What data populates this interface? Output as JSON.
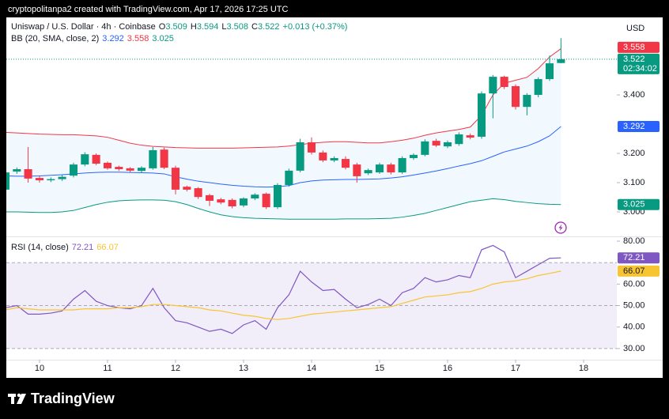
{
  "header": "cryptopolitanpa2 created with TradingView.com, Apr 17, 2026 17:25 UTC",
  "brand": "TradingView",
  "chart_data": [
    {
      "type": "candlestick",
      "title": "Uniswap / U.S. Dollar · 4h · Coinbase",
      "currency": "USD",
      "ohlc_labels": [
        "O",
        "H",
        "L",
        "C"
      ],
      "change": "+0.013 (+0.37%)",
      "countdown": "02:34:02",
      "x": [
        9.5,
        9.667,
        9.833,
        10,
        10.167,
        10.333,
        10.5,
        10.667,
        10.833,
        11,
        11.167,
        11.333,
        11.5,
        11.667,
        11.833,
        12,
        12.167,
        12.333,
        12.5,
        12.667,
        12.833,
        13,
        13.167,
        13.333,
        13.5,
        13.667,
        13.833,
        14,
        14.167,
        14.333,
        14.5,
        14.667,
        14.833,
        15,
        15.167,
        15.333,
        15.5,
        15.667,
        15.833,
        16,
        16.167,
        16.333,
        16.5,
        16.667,
        16.833,
        17,
        17.167,
        17.333,
        17.5,
        17.667
      ],
      "xlim": [
        9.512,
        18.488
      ],
      "open": [
        3.076,
        3.138,
        3.146,
        3.116,
        3.108,
        3.112,
        3.124,
        3.162,
        3.195,
        3.168,
        3.154,
        3.149,
        3.14,
        3.149,
        3.213,
        3.151,
        3.086,
        3.081,
        3.057,
        3.043,
        3.041,
        3.022,
        3.046,
        3.062,
        3.016,
        3.092,
        3.141,
        3.238,
        3.203,
        3.176,
        3.181,
        3.162,
        3.132,
        3.135,
        3.162,
        3.135,
        3.184,
        3.195,
        3.243,
        3.224,
        3.232,
        3.262,
        3.257,
        3.405,
        3.462,
        3.43,
        3.359,
        3.4,
        3.454,
        3.509
      ],
      "high": [
        3.142,
        3.152,
        3.222,
        3.122,
        3.118,
        3.126,
        3.168,
        3.204,
        3.2,
        3.172,
        3.158,
        3.153,
        3.156,
        3.222,
        3.22,
        3.158,
        3.09,
        3.085,
        3.062,
        3.048,
        3.046,
        3.05,
        3.064,
        3.066,
        3.098,
        3.148,
        3.25,
        3.255,
        3.21,
        3.19,
        3.19,
        3.168,
        3.148,
        3.168,
        3.168,
        3.19,
        3.2,
        3.248,
        3.25,
        3.244,
        3.272,
        3.268,
        3.412,
        3.468,
        3.466,
        3.436,
        3.406,
        3.46,
        3.535,
        3.594
      ],
      "low": [
        3.07,
        3.13,
        3.1,
        3.1,
        3.102,
        3.106,
        3.118,
        3.156,
        3.16,
        3.144,
        3.14,
        3.135,
        3.134,
        3.144,
        3.146,
        3.06,
        3.07,
        3.044,
        3.02,
        3.026,
        3.012,
        3.016,
        3.04,
        3.01,
        3.01,
        3.086,
        3.135,
        3.196,
        3.17,
        3.17,
        3.145,
        3.1,
        3.126,
        3.13,
        3.128,
        3.13,
        3.178,
        3.19,
        3.222,
        3.218,
        3.226,
        3.248,
        3.25,
        3.32,
        3.42,
        3.35,
        3.33,
        3.392,
        3.448,
        3.508
      ],
      "close": [
        3.135,
        3.146,
        3.114,
        3.108,
        3.112,
        3.12,
        3.162,
        3.197,
        3.165,
        3.149,
        3.146,
        3.141,
        3.151,
        3.211,
        3.151,
        3.076,
        3.076,
        3.051,
        3.038,
        3.032,
        3.019,
        3.046,
        3.059,
        3.016,
        3.092,
        3.141,
        3.238,
        3.203,
        3.176,
        3.184,
        3.151,
        3.122,
        3.143,
        3.162,
        3.135,
        3.184,
        3.195,
        3.241,
        3.227,
        3.238,
        3.265,
        3.254,
        3.405,
        3.462,
        3.427,
        3.359,
        3.4,
        3.454,
        3.508,
        3.522
      ],
      "up_color": "#089981",
      "down_color": "#f23645",
      "ylim": [
        2.919,
        3.665
      ],
      "yticks": [
        {
          "value": 3.4,
          "label": "3.400"
        },
        {
          "value": 3.2,
          "label": "3.200"
        },
        {
          "value": 3.1,
          "label": "3.100"
        },
        {
          "value": 3.0,
          "label": "3.000"
        }
      ],
      "indicator": {
        "name": "BB (20, SMA, close, 2)",
        "fill": "#2196f3",
        "series": [
          {
            "color": "#2962ff",
            "values": [
              3.123,
              3.122,
              3.122,
              3.123,
              3.125,
              3.127,
              3.13,
              3.133,
              3.135,
              3.136,
              3.136,
              3.135,
              3.134,
              3.133,
              3.13,
              3.12,
              3.112,
              3.105,
              3.1,
              3.095,
              3.091,
              3.088,
              3.086,
              3.085,
              3.086,
              3.09,
              3.1,
              3.106,
              3.109,
              3.11,
              3.111,
              3.111,
              3.112,
              3.113,
              3.116,
              3.12,
              3.126,
              3.133,
              3.14,
              3.148,
              3.157,
              3.165,
              3.175,
              3.19,
              3.205,
              3.215,
              3.225,
              3.24,
              3.26,
              3.292
            ]
          },
          {
            "color": "#f23645",
            "values": [
              3.272,
              3.27,
              3.268,
              3.266,
              3.265,
              3.264,
              3.264,
              3.262,
              3.26,
              3.255,
              3.245,
              3.235,
              3.228,
              3.224,
              3.222,
              3.22,
              3.219,
              3.218,
              3.218,
              3.218,
              3.218,
              3.219,
              3.22,
              3.221,
              3.222,
              3.225,
              3.23,
              3.235,
              3.238,
              3.24,
              3.24,
              3.238,
              3.236,
              3.236,
              3.24,
              3.245,
              3.252,
              3.262,
              3.27,
              3.276,
              3.282,
              3.29,
              3.33,
              3.4,
              3.44,
              3.45,
              3.46,
              3.49,
              3.53,
              3.558
            ]
          },
          {
            "color": "#089981",
            "values": [
              3.0,
              3.0,
              2.999,
              2.998,
              2.998,
              3.0,
              3.005,
              3.015,
              3.025,
              3.033,
              3.038,
              3.04,
              3.041,
              3.041,
              3.04,
              3.035,
              3.025,
              3.012,
              3.0,
              2.99,
              2.984,
              2.98,
              2.978,
              2.977,
              2.976,
              2.975,
              2.975,
              2.975,
              2.975,
              2.975,
              2.976,
              2.976,
              2.976,
              2.977,
              2.978,
              2.982,
              2.988,
              2.995,
              3.005,
              3.015,
              3.025,
              3.035,
              3.04,
              3.045,
              3.042,
              3.036,
              3.032,
              3.028,
              3.026,
              3.025
            ]
          }
        ]
      }
    },
    {
      "type": "line",
      "title": "RSI (14, close)",
      "x": [
        9.5,
        9.667,
        9.833,
        10,
        10.167,
        10.333,
        10.5,
        10.667,
        10.833,
        11,
        11.167,
        11.333,
        11.5,
        11.667,
        11.833,
        12,
        12.167,
        12.333,
        12.5,
        12.667,
        12.833,
        13,
        13.167,
        13.333,
        13.5,
        13.667,
        13.833,
        14,
        14.167,
        14.333,
        14.5,
        14.667,
        14.833,
        15,
        15.167,
        15.333,
        15.5,
        15.667,
        15.833,
        16,
        16.167,
        16.333,
        16.5,
        16.667,
        16.833,
        17,
        17.167,
        17.333,
        17.5,
        17.667
      ],
      "xlim": [
        9.512,
        18.488
      ],
      "xticks": [
        10,
        11,
        12,
        13,
        14,
        15,
        16,
        17,
        18
      ],
      "series": [
        {
          "color": "#7e57c2",
          "values": [
            49,
            50,
            46,
            46,
            46.5,
            47.5,
            53,
            57,
            52,
            50,
            49,
            48.5,
            50,
            58,
            49,
            43,
            42,
            40,
            38,
            39,
            37,
            41,
            43,
            39,
            49,
            55,
            66,
            61,
            57,
            57.5,
            53,
            49,
            50.5,
            53,
            50,
            56,
            58,
            63,
            61,
            62,
            64,
            63,
            76,
            78,
            75,
            63,
            66,
            69,
            72,
            72.21
          ]
        },
        {
          "color": "#f7c531",
          "values": [
            48,
            49,
            48.5,
            48,
            48,
            48,
            48,
            48.5,
            48.5,
            48.5,
            49,
            49,
            49.5,
            50.5,
            50.5,
            50,
            49.5,
            49,
            48,
            47.5,
            46.5,
            45.5,
            45,
            44,
            43.5,
            44,
            45,
            46,
            46.5,
            47,
            47.5,
            48,
            48.5,
            49,
            49.5,
            51,
            52.5,
            54,
            54.5,
            55,
            56,
            56.5,
            58,
            60,
            61,
            61.5,
            62.5,
            64,
            65,
            66.07
          ]
        }
      ],
      "ylim": [
        24.8,
        81.85
      ],
      "yticks": [
        {
          "value": 80,
          "label": "80.00"
        },
        {
          "value": 60,
          "label": "60.00"
        },
        {
          "value": 50,
          "label": "50.00"
        },
        {
          "value": 40,
          "label": "40.00"
        },
        {
          "value": 30,
          "label": "30.00"
        }
      ],
      "levels": [
        70,
        50,
        30
      ],
      "band_color": "#7e57c2"
    }
  ]
}
